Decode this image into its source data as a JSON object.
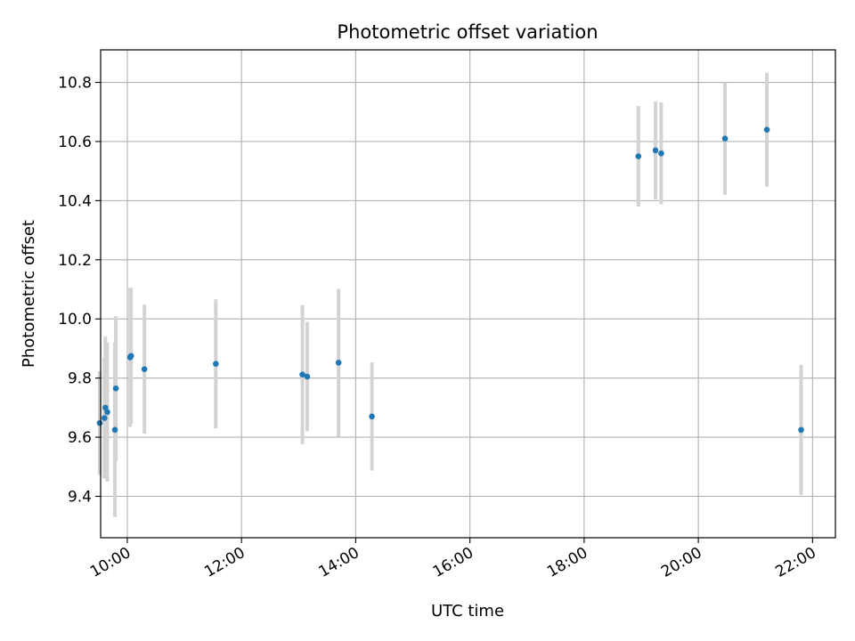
{
  "chart_data": {
    "type": "scatter",
    "title": "Photometric offset variation",
    "xlabel": "UTC time",
    "ylabel": "Photometric offset",
    "x_scale": "time",
    "xlim": [
      "09:32",
      "22:24"
    ],
    "ylim": [
      9.26,
      10.91
    ],
    "x_ticks": [
      "10:00",
      "12:00",
      "14:00",
      "16:00",
      "18:00",
      "20:00",
      "22:00"
    ],
    "y_ticks": [
      "9.4",
      "9.6",
      "9.8",
      "10.0",
      "10.2",
      "10.4",
      "10.6",
      "10.8"
    ],
    "grid": true,
    "legend": "none",
    "colors": {
      "point": "#1f77b4",
      "errorbar": "#d3d3d3",
      "grid": "#b0b0b0"
    },
    "points": [
      {
        "x": "09:31",
        "y": 9.648,
        "yerr": 0.175
      },
      {
        "x": "09:36",
        "y": 9.665,
        "yerr": 0.205
      },
      {
        "x": "09:37",
        "y": 9.7,
        "yerr": 0.24
      },
      {
        "x": "09:39",
        "y": 9.685,
        "yerr": 0.235
      },
      {
        "x": "09:47",
        "y": 9.625,
        "yerr": 0.295
      },
      {
        "x": "09:48",
        "y": 9.765,
        "yerr": 0.245
      },
      {
        "x": "10:03",
        "y": 9.87,
        "yerr": 0.235
      },
      {
        "x": "10:04",
        "y": 9.875,
        "yerr": 0.23
      },
      {
        "x": "10:18",
        "y": 9.83,
        "yerr": 0.218
      },
      {
        "x": "11:33",
        "y": 9.848,
        "yerr": 0.218
      },
      {
        "x": "13:04",
        "y": 9.812,
        "yerr": 0.235
      },
      {
        "x": "13:09",
        "y": 9.805,
        "yerr": 0.185
      },
      {
        "x": "13:42",
        "y": 9.852,
        "yerr": 0.25
      },
      {
        "x": "14:17",
        "y": 9.67,
        "yerr": 0.183
      },
      {
        "x": "18:57",
        "y": 10.55,
        "yerr": 0.17
      },
      {
        "x": "19:15",
        "y": 10.57,
        "yerr": 0.165
      },
      {
        "x": "19:21",
        "y": 10.56,
        "yerr": 0.172
      },
      {
        "x": "20:28",
        "y": 10.61,
        "yerr": 0.19
      },
      {
        "x": "21:12",
        "y": 10.64,
        "yerr": 0.193
      },
      {
        "x": "21:48",
        "y": 9.625,
        "yerr": 0.22
      }
    ]
  }
}
